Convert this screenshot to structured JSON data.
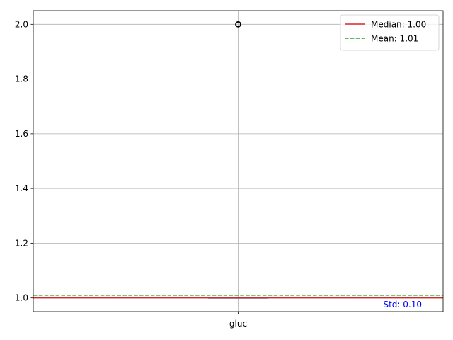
{
  "chart_data": {
    "type": "box",
    "categories": [
      "gluc"
    ],
    "ylim": [
      0.95,
      2.05
    ],
    "yticks": [
      1.0,
      1.2,
      1.4,
      1.6,
      1.8,
      2.0
    ],
    "ytick_labels": [
      "1.0",
      "1.2",
      "1.4",
      "1.6",
      "1.8",
      "2.0"
    ],
    "grid": true,
    "box": {
      "q1": 1.0,
      "median": 1.0,
      "q3": 1.0,
      "whisker_low": 1.0,
      "whisker_high": 1.0,
      "outliers": [
        2.0
      ]
    },
    "reference_lines": [
      {
        "label": "Median: 1.00",
        "value": 1.0,
        "color": "#d62728",
        "style": "solid"
      },
      {
        "label": "Mean: 1.01",
        "value": 1.01,
        "color": "#2ca02c",
        "style": "dashed"
      }
    ],
    "legend_position": "top-right",
    "annotation": {
      "text": "Std: 0.10",
      "color": "#0000ff",
      "position": "bottom-right"
    },
    "colors": {
      "box": "#1f77b4",
      "median_in_box": "#2ca02c",
      "outlier": "#000000",
      "grid": "#b0b0b0"
    }
  }
}
